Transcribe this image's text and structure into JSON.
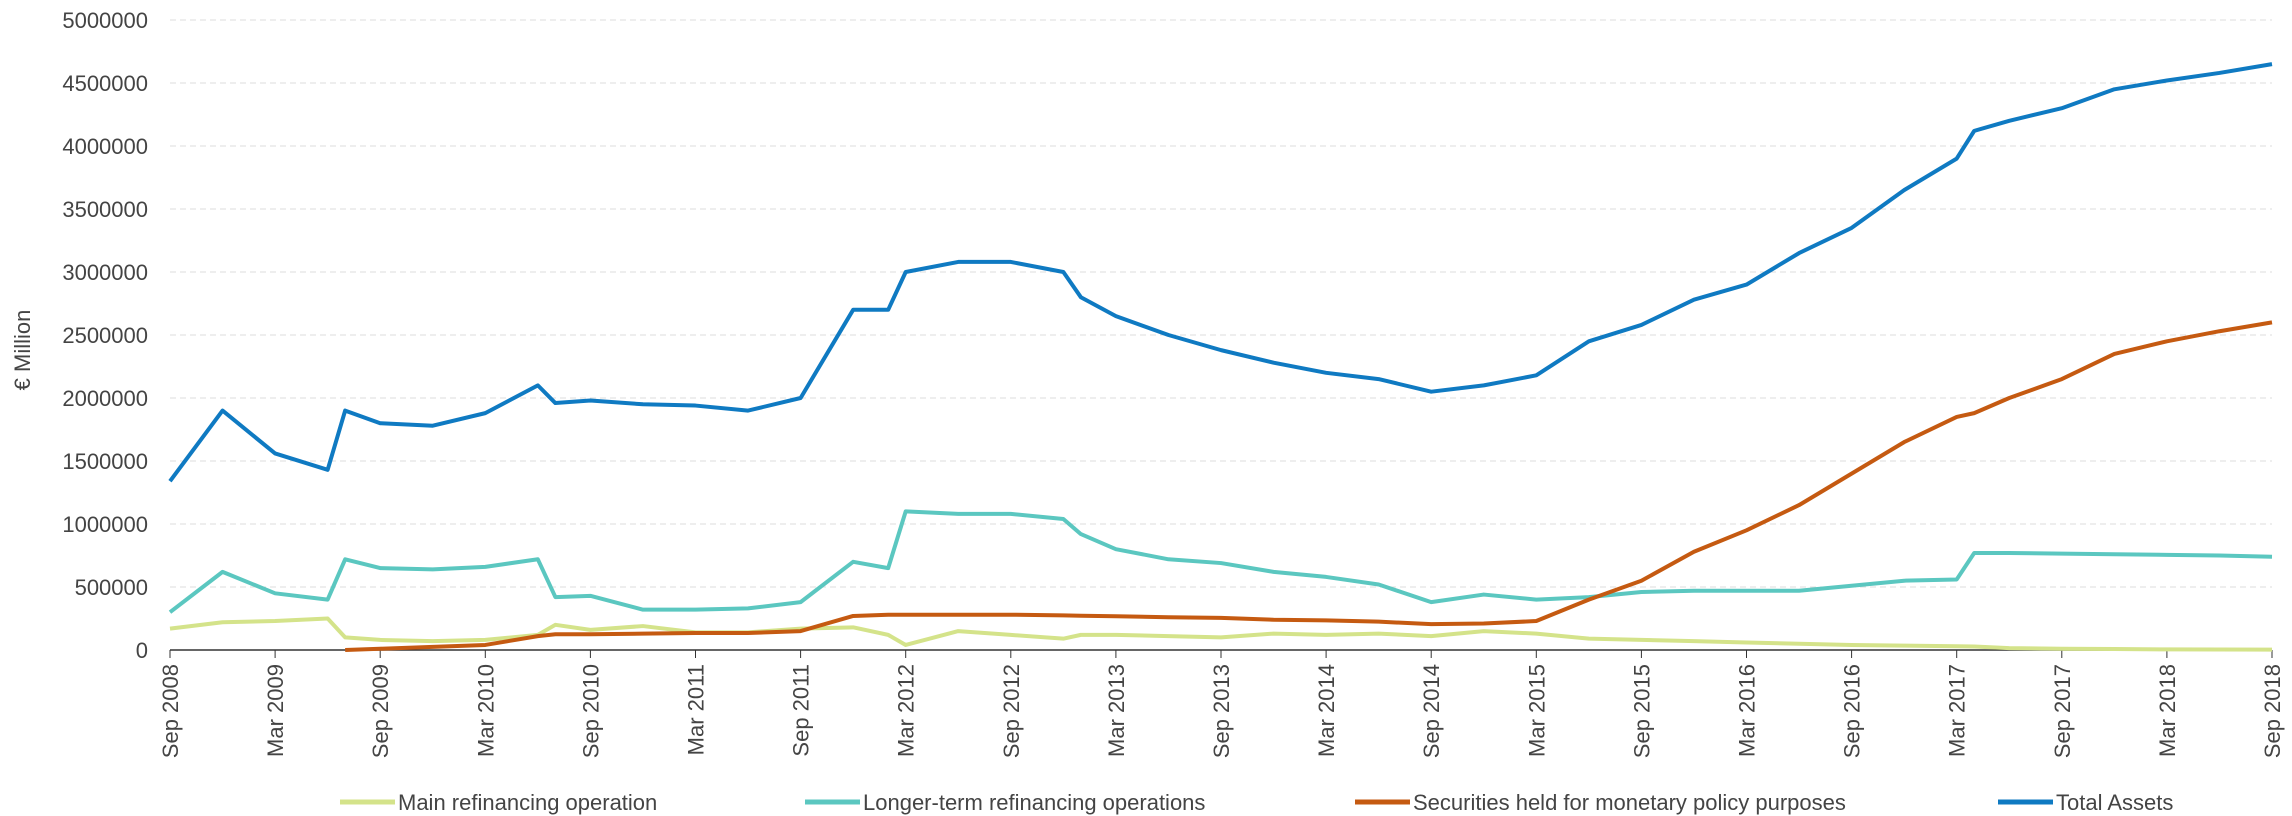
{
  "chart_data": {
    "type": "line",
    "y_label": "€ Million",
    "x": [
      "2008-09",
      "2008-12",
      "2009-03",
      "2009-06",
      "2009-07",
      "2009-09",
      "2009-12",
      "2010-03",
      "2010-06",
      "2010-07",
      "2010-09",
      "2010-12",
      "2011-03",
      "2011-06",
      "2011-09",
      "2011-12",
      "2012-02",
      "2012-03",
      "2012-06",
      "2012-09",
      "2012-12",
      "2013-01",
      "2013-03",
      "2013-06",
      "2013-09",
      "2013-12",
      "2014-03",
      "2014-06",
      "2014-09",
      "2014-12",
      "2015-03",
      "2015-06",
      "2015-09",
      "2015-12",
      "2016-03",
      "2016-06",
      "2016-09",
      "2016-12",
      "2017-03",
      "2017-04",
      "2017-06",
      "2017-09",
      "2017-12",
      "2018-03",
      "2018-06",
      "2018-09"
    ],
    "series": [
      {
        "name": "Main refinancing operation",
        "color": "#d4e38a",
        "values": [
          170000,
          220000,
          230000,
          250000,
          100000,
          80000,
          70000,
          80000,
          120000,
          200000,
          160000,
          190000,
          140000,
          140000,
          170000,
          180000,
          120000,
          40000,
          150000,
          120000,
          90000,
          120000,
          120000,
          110000,
          100000,
          130000,
          120000,
          130000,
          110000,
          150000,
          130000,
          90000,
          80000,
          70000,
          60000,
          50000,
          40000,
          35000,
          30000,
          28000,
          15000,
          10000,
          8000,
          5000,
          4000,
          3000
        ]
      },
      {
        "name": "Longer-term refinancing operations",
        "color": "#5bc7c0",
        "values": [
          300000,
          620000,
          450000,
          400000,
          720000,
          650000,
          640000,
          660000,
          720000,
          420000,
          430000,
          320000,
          320000,
          330000,
          380000,
          700000,
          650000,
          1100000,
          1080000,
          1080000,
          1040000,
          920000,
          800000,
          720000,
          690000,
          620000,
          580000,
          520000,
          380000,
          440000,
          400000,
          420000,
          460000,
          470000,
          470000,
          470000,
          510000,
          550000,
          560000,
          770000,
          770000,
          765000,
          760000,
          755000,
          750000,
          740000
        ]
      },
      {
        "name": "Securities held for monetary policy purposes",
        "color": "#c55a11",
        "values": [
          null,
          null,
          null,
          null,
          0,
          10000,
          25000,
          40000,
          110000,
          125000,
          125000,
          130000,
          135000,
          135000,
          150000,
          270000,
          280000,
          280000,
          280000,
          280000,
          275000,
          272000,
          268000,
          260000,
          255000,
          240000,
          235000,
          225000,
          205000,
          210000,
          230000,
          400000,
          550000,
          780000,
          950000,
          1150000,
          1400000,
          1650000,
          1850000,
          1880000,
          2000000,
          2150000,
          2350000,
          2450000,
          2530000,
          2600000
        ]
      },
      {
        "name": "Total Assets",
        "color": "#0f7ac2",
        "values": [
          1340000,
          1900000,
          1560000,
          1430000,
          1900000,
          1800000,
          1780000,
          1880000,
          2100000,
          1960000,
          1980000,
          1950000,
          1940000,
          1900000,
          2000000,
          2700000,
          2700000,
          3000000,
          3080000,
          3080000,
          3000000,
          2800000,
          2650000,
          2500000,
          2380000,
          2280000,
          2200000,
          2150000,
          2050000,
          2100000,
          2180000,
          2450000,
          2580000,
          2780000,
          2900000,
          3150000,
          3350000,
          3650000,
          3900000,
          4120000,
          4200000,
          4300000,
          4450000,
          4520000,
          4580000,
          4650000
        ]
      }
    ],
    "xlim": [
      "2008-09",
      "2018-09"
    ],
    "xticks": [
      {
        "value": "2008-09",
        "label": "Sep 2008"
      },
      {
        "value": "2009-03",
        "label": "Mar 2009"
      },
      {
        "value": "2009-09",
        "label": "Sep 2009"
      },
      {
        "value": "2010-03",
        "label": "Mar 2010"
      },
      {
        "value": "2010-09",
        "label": "Sep 2010"
      },
      {
        "value": "2011-03",
        "label": "Mar 2011"
      },
      {
        "value": "2011-09",
        "label": "Sep 2011"
      },
      {
        "value": "2012-03",
        "label": "Mar 2012"
      },
      {
        "value": "2012-09",
        "label": "Sep 2012"
      },
      {
        "value": "2013-03",
        "label": "Mar 2013"
      },
      {
        "value": "2013-09",
        "label": "Sep 2013"
      },
      {
        "value": "2014-03",
        "label": "Mar 2014"
      },
      {
        "value": "2014-09",
        "label": "Sep 2014"
      },
      {
        "value": "2015-03",
        "label": "Mar 2015"
      },
      {
        "value": "2015-09",
        "label": "Sep 2015"
      },
      {
        "value": "2016-03",
        "label": "Mar 2016"
      },
      {
        "value": "2016-09",
        "label": "Sep 2016"
      },
      {
        "value": "2017-03",
        "label": "Mar 2017"
      },
      {
        "value": "2017-09",
        "label": "Sep 2017"
      },
      {
        "value": "2018-03",
        "label": "Mar 2018"
      },
      {
        "value": "2018-09",
        "label": "Sep 2018"
      }
    ],
    "ylim": [
      0,
      5000000
    ],
    "yticks": [
      0,
      500000,
      1000000,
      1500000,
      2000000,
      2500000,
      3000000,
      3500000,
      4000000,
      4500000,
      5000000
    ],
    "grid": true,
    "legend": "bottom"
  }
}
